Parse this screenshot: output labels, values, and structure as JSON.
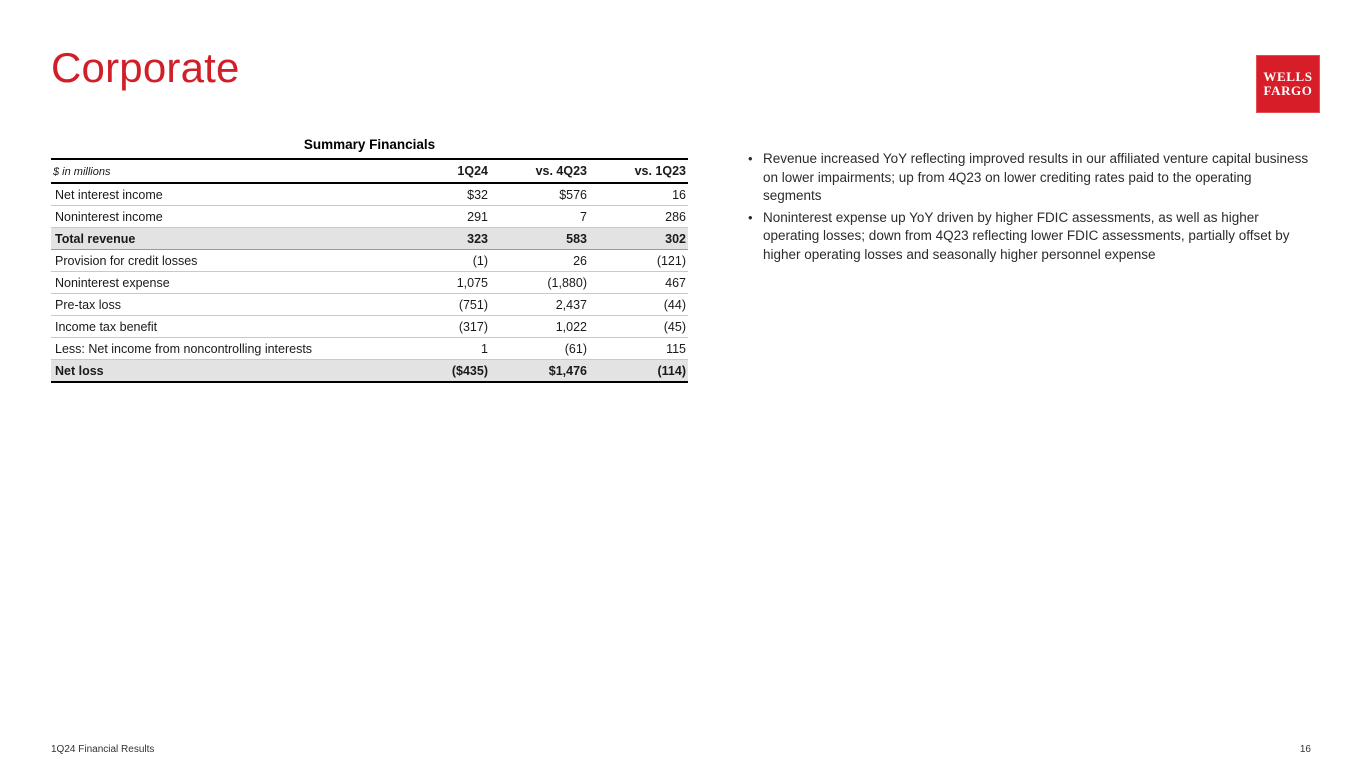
{
  "slide": {
    "title": "Corporate",
    "footer_left": "1Q24 Financial Results",
    "page_number": "16"
  },
  "logo": {
    "line1": "WELLS",
    "line2": "FARGO"
  },
  "colors": {
    "brand_red": "#d71e28",
    "row_shade": "#e3e3e3"
  },
  "table": {
    "title": "Summary Financials",
    "unit_label": "$ in millions",
    "columns": [
      "1Q24",
      "vs. 4Q23",
      "vs. 1Q23"
    ],
    "rows": [
      {
        "label": "Net interest income",
        "values": [
          "$32",
          "$576",
          "16"
        ],
        "emphasis": false
      },
      {
        "label": "Noninterest income",
        "values": [
          "291",
          "7",
          "286"
        ],
        "emphasis": false
      },
      {
        "label": "Total revenue",
        "values": [
          "323",
          "583",
          "302"
        ],
        "emphasis": true
      },
      {
        "label": "Provision for credit losses",
        "values": [
          "(1)",
          "26",
          "(121)"
        ],
        "emphasis": false
      },
      {
        "label": "Noninterest expense",
        "values": [
          "1,075",
          "(1,880)",
          "467"
        ],
        "emphasis": false
      },
      {
        "label": "Pre-tax loss",
        "values": [
          "(751)",
          "2,437",
          "(44)"
        ],
        "emphasis": false
      },
      {
        "label": "Income tax benefit",
        "values": [
          "(317)",
          "1,022",
          "(45)"
        ],
        "emphasis": false
      },
      {
        "label": "Less: Net income from noncontrolling interests",
        "values": [
          "1",
          "(61)",
          "115"
        ],
        "emphasis": false
      },
      {
        "label": "Net loss",
        "values": [
          "($435)",
          "$1,476",
          "(114)"
        ],
        "emphasis": true
      }
    ]
  },
  "bullets": [
    "Revenue increased YoY reflecting improved results in our affiliated venture capital business on lower impairments; up from 4Q23 on lower crediting rates paid to the operating segments",
    "Noninterest expense up YoY driven by higher FDIC assessments, as well as higher operating losses; down from 4Q23 reflecting lower FDIC assessments, partially offset by higher operating losses and seasonally higher personnel expense"
  ]
}
